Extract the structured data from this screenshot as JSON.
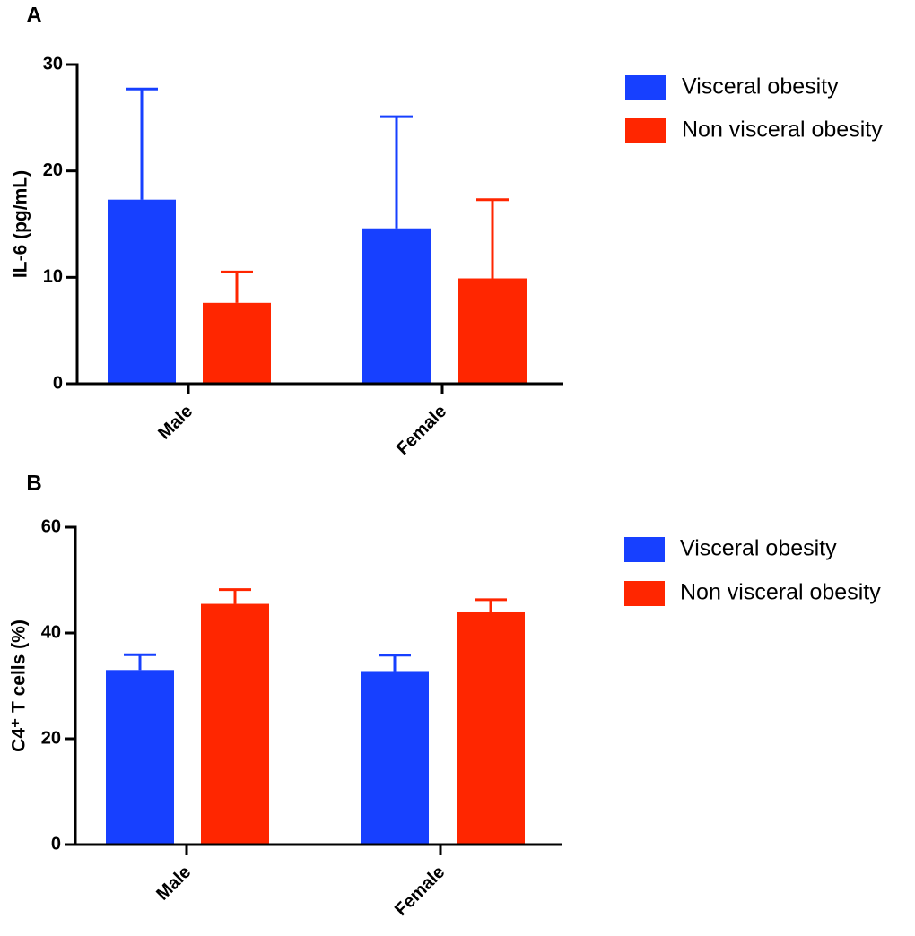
{
  "chart_data": [
    {
      "type": "bar",
      "panel": "A",
      "y_label": "IL-6 (pg/mL)",
      "categories": [
        "Male",
        "Female"
      ],
      "series": [
        {
          "name": "Visceral obesity",
          "color": "#1740ff",
          "values": [
            17.3,
            14.6
          ],
          "errors": [
            10.4,
            10.5
          ]
        },
        {
          "name": "Non visceral obesity",
          "color": "#ff2600",
          "values": [
            7.6,
            9.9
          ],
          "errors": [
            2.9,
            7.4
          ]
        }
      ],
      "ylim": [
        0,
        30
      ],
      "yticks": [
        0,
        10,
        20,
        30
      ]
    },
    {
      "type": "bar",
      "panel": "B",
      "y_label": "C4⁺ T cells (%)",
      "categories": [
        "Male",
        "Female"
      ],
      "series": [
        {
          "name": "Visceral obesity",
          "color": "#1740ff",
          "values": [
            33.0,
            32.8
          ],
          "errors": [
            2.9,
            3.0
          ]
        },
        {
          "name": "Non visceral obesity",
          "color": "#ff2600",
          "values": [
            45.5,
            43.9
          ],
          "errors": [
            2.7,
            2.4
          ]
        }
      ],
      "ylim": [
        0,
        60
      ],
      "yticks": [
        0,
        20,
        40,
        60
      ]
    }
  ]
}
